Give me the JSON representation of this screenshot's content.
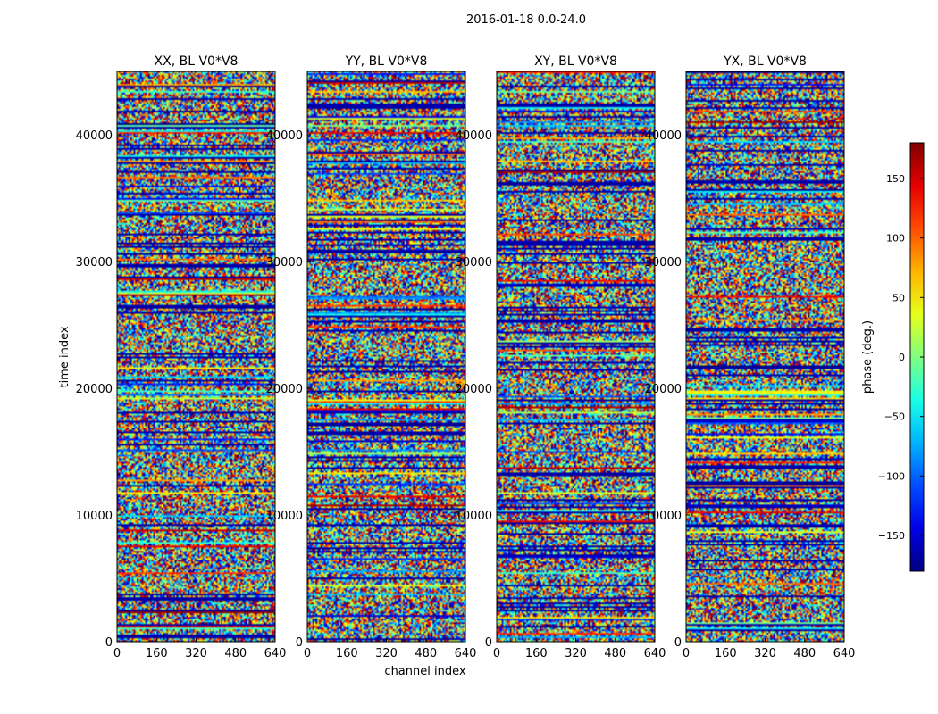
{
  "figure": {
    "suptitle": "2016-01-18 0.0-24.0"
  },
  "chart_data": {
    "type": "heatmap",
    "shared": {
      "xlabel": "channel index",
      "ylabel": "time index",
      "xlim": [
        0,
        640
      ],
      "ylim": [
        0,
        45000
      ],
      "x_ticks": [
        0,
        160,
        320,
        480,
        640
      ],
      "y_ticks": [
        0,
        10000,
        20000,
        30000,
        40000
      ],
      "colormap": "jet",
      "colorbar": {
        "label": "phase (deg.)",
        "range": [
          -180,
          180
        ],
        "ticks": [
          -150,
          -100,
          -50,
          0,
          50,
          100,
          150
        ],
        "tick_labels": [
          "−150",
          "−100",
          "−50",
          "0",
          "50",
          "100",
          "150"
        ]
      }
    },
    "panels": [
      {
        "title": "XX, BL V0*V8"
      },
      {
        "title": "YY, BL V0*V8"
      },
      {
        "title": "XY, BL V0*V8"
      },
      {
        "title": "YX, BL V0*V8"
      }
    ]
  }
}
